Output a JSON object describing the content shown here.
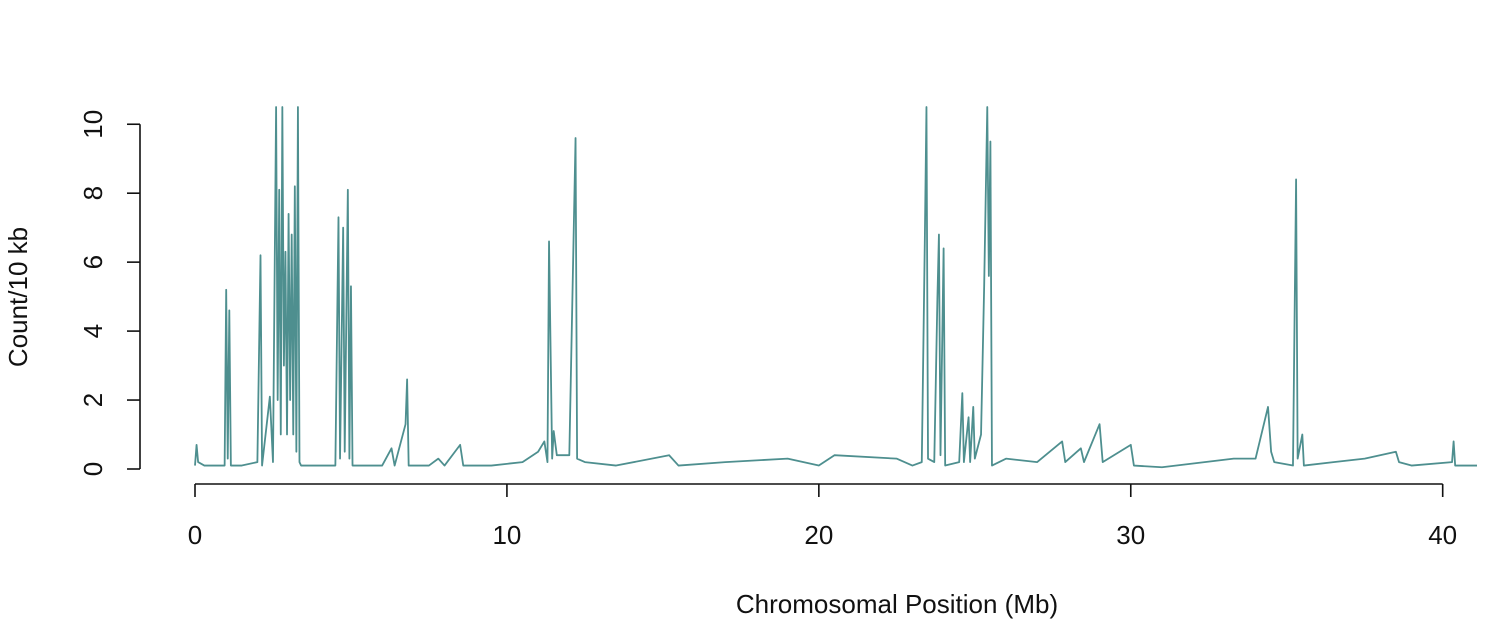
{
  "chart_data": {
    "type": "line",
    "xlabel": "Chromosomal Position (Mb)",
    "ylabel": "Count/10 kb",
    "color": "#4e8f8f",
    "xlim": [
      0,
      41.1
    ],
    "xticks": [
      0,
      10,
      20,
      30,
      40
    ],
    "ylim": [
      0,
      10.5
    ],
    "yticks": [
      0,
      2,
      4,
      6,
      8,
      10
    ],
    "x": [
      0,
      0.05,
      0.1,
      0.3,
      0.6,
      0.95,
      1.0,
      1.05,
      1.1,
      1.15,
      1.5,
      2.0,
      2.1,
      2.15,
      2.4,
      2.5,
      2.6,
      2.65,
      2.7,
      2.75,
      2.8,
      2.85,
      2.9,
      2.95,
      3.0,
      3.05,
      3.1,
      3.15,
      3.2,
      3.25,
      3.3,
      3.35,
      3.4,
      4.0,
      4.5,
      4.6,
      4.65,
      4.75,
      4.8,
      4.9,
      4.95,
      5.0,
      5.05,
      6.0,
      6.3,
      6.4,
      6.75,
      6.8,
      6.85,
      7.5,
      7.8,
      8.0,
      8.5,
      8.6,
      9.5,
      10.5,
      11.0,
      11.2,
      11.3,
      11.35,
      11.45,
      11.5,
      11.6,
      12.0,
      12.2,
      12.25,
      12.5,
      13.5,
      15.2,
      15.5,
      17.0,
      19.0,
      20.0,
      20.5,
      22.5,
      23.0,
      23.3,
      23.4,
      23.45,
      23.5,
      23.7,
      23.8,
      23.85,
      23.9,
      24.0,
      24.05,
      24.5,
      24.6,
      24.65,
      24.8,
      24.85,
      24.95,
      25.0,
      25.2,
      25.3,
      25.4,
      25.45,
      25.5,
      25.55,
      26.0,
      27.0,
      27.8,
      27.9,
      28.4,
      28.5,
      29.0,
      29.1,
      30.0,
      30.1,
      31.0,
      33.3,
      34.0,
      34.4,
      34.5,
      34.6,
      35.2,
      35.3,
      35.35,
      35.5,
      35.55,
      36.5,
      37.5,
      38.5,
      38.6,
      39.0,
      40.3,
      40.35,
      40.4,
      41.1
    ],
    "values": [
      0.1,
      0.7,
      0.2,
      0.1,
      0.1,
      0.1,
      5.2,
      0.3,
      4.6,
      0.1,
      0.1,
      0.2,
      6.2,
      0.1,
      2.1,
      0.2,
      10.5,
      2,
      8.1,
      1,
      10.5,
      3,
      6.3,
      1,
      7.4,
      2,
      6.8,
      1,
      8.2,
      0.5,
      10.5,
      0.2,
      0.1,
      0.1,
      0.1,
      7.3,
      0.3,
      7.0,
      0.5,
      8.1,
      0.3,
      5.3,
      0.1,
      0.1,
      0.6,
      0.1,
      1.3,
      2.6,
      0.1,
      0.1,
      0.3,
      0.1,
      0.7,
      0.1,
      0.1,
      0.2,
      0.5,
      0.8,
      0.2,
      6.6,
      0.3,
      1.1,
      0.4,
      0.4,
      9.6,
      0.3,
      0.2,
      0.1,
      0.4,
      0.1,
      0.2,
      0.3,
      0.1,
      0.4,
      0.3,
      0.1,
      0.2,
      6.8,
      10.5,
      0.3,
      0.2,
      4.9,
      6.8,
      0.4,
      6.4,
      0.1,
      0.2,
      2.2,
      0.2,
      1.5,
      0.2,
      1.8,
      0.3,
      1.0,
      5.3,
      10.5,
      5.6,
      9.5,
      0.1,
      0.3,
      0.2,
      0.8,
      0.2,
      0.6,
      0.2,
      1.3,
      0.2,
      0.7,
      0.1,
      0.05,
      0.3,
      0.3,
      1.8,
      0.5,
      0.2,
      0.1,
      8.4,
      0.3,
      1.0,
      0.1,
      0.2,
      0.3,
      0.5,
      0.2,
      0.1,
      0.2,
      0.8,
      0.1,
      0.1
    ]
  }
}
